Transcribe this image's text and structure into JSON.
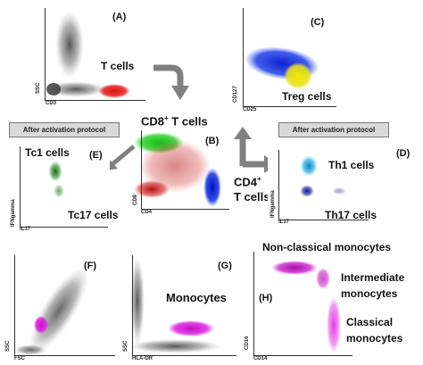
{
  "panels": {
    "A": {
      "letter": "(A)",
      "xaxis": "CD3",
      "yaxis": "SSC",
      "population": "T cells"
    },
    "B": {
      "letter": "(B)",
      "xaxis": "CD4",
      "yaxis": "CD8",
      "population_cd8": "CD8",
      "population_cd8_sup": "+",
      "population_cd8_suffix": " T cells",
      "population_cd4": "CD4",
      "population_cd4_sup": "+",
      "population_cd4_suffix": "T cells"
    },
    "C": {
      "letter": "(C)",
      "xaxis": "CD25",
      "yaxis": "CD127",
      "population": "Treg cells"
    },
    "D": {
      "letter": "(D)",
      "xaxis": "IL17",
      "yaxis": "IFNgamma",
      "population_a": "Th1 cells",
      "population_b": "Th17 cells"
    },
    "E": {
      "letter": "(E)",
      "xaxis": "IL17",
      "yaxis": "IFNgamma",
      "population_a": "Tc1 cells",
      "population_b": "Tc17 cells"
    },
    "F": {
      "letter": "(F)",
      "xaxis": "FSC",
      "yaxis": "SSC"
    },
    "G": {
      "letter": "(G)",
      "xaxis": "HLA-DR",
      "yaxis": "SSC",
      "population": "Monocytes"
    },
    "H": {
      "letter": "(H)",
      "xaxis": "CD14",
      "yaxis": "CD16",
      "population_a": "Non-classical monocytes",
      "population_b1": "Intermediate",
      "population_b2": "monocytes",
      "population_c1": "Classical",
      "population_c2": "monocytes"
    }
  },
  "banners": {
    "left": "After activation protocol",
    "right": "After activation protocol"
  },
  "colors": {
    "t_cells": "#e01010",
    "cd8": "#22c022",
    "cd4": "#1030e0",
    "treg": "#e8e020",
    "th1": "#40b8e8",
    "monocytes": "#e020e0",
    "arrow": "#808080"
  }
}
